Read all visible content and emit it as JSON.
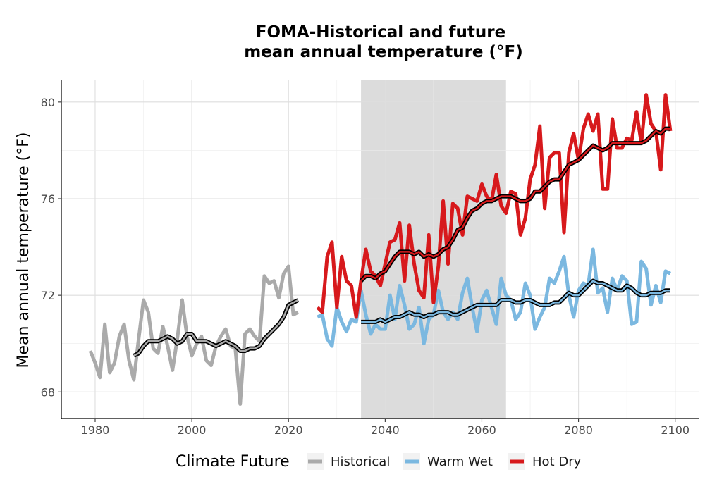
{
  "chart_data": {
    "type": "line",
    "title_line1": "FOMA-Historical and future",
    "title_line2": "mean annual temperature (°F)",
    "xlabel": "",
    "ylabel": "Mean annual temperature (°F)",
    "xlim": [
      1973,
      2105
    ],
    "ylim": [
      66.9,
      80.9
    ],
    "x_ticks": [
      1980,
      2000,
      2020,
      2040,
      2060,
      2080,
      2100
    ],
    "y_ticks": [
      68,
      72,
      76,
      80
    ],
    "grid": true,
    "shaded_period": [
      2035,
      2065
    ],
    "legend": {
      "title": "Climate Future",
      "placement": "bottom",
      "entries": [
        {
          "label": "Historical",
          "color": "#aaaaaa"
        },
        {
          "label": "Warm Wet",
          "color": "#7bb8e0"
        },
        {
          "label": "Hot Dry",
          "color": "#d7191c"
        }
      ]
    },
    "series": [
      {
        "name": "Historical",
        "color": "#aaaaaa",
        "x": [
          1979,
          1980,
          1981,
          1982,
          1983,
          1984,
          1985,
          1986,
          1987,
          1988,
          1989,
          1990,
          1991,
          1992,
          1993,
          1994,
          1995,
          1996,
          1997,
          1998,
          1999,
          2000,
          2001,
          2002,
          2003,
          2004,
          2005,
          2006,
          2007,
          2008,
          2009,
          2010,
          2011,
          2012,
          2013,
          2014,
          2015,
          2016,
          2017,
          2018,
          2019,
          2020,
          2021,
          2022
        ],
        "values": [
          69.7,
          69.2,
          68.6,
          70.8,
          68.8,
          69.2,
          70.3,
          70.8,
          69.3,
          68.5,
          70.2,
          71.8,
          71.3,
          69.8,
          69.6,
          70.7,
          69.9,
          68.9,
          70.2,
          71.8,
          70.3,
          69.5,
          70.0,
          70.3,
          69.3,
          69.1,
          69.9,
          70.3,
          70.6,
          69.9,
          69.8,
          67.5,
          70.4,
          70.6,
          70.3,
          70.1,
          72.8,
          72.5,
          72.6,
          71.9,
          72.9,
          73.2,
          71.2,
          71.3
        ]
      },
      {
        "name": "Historical (smoothed)",
        "color": "#aaaaaa",
        "smoothed": true,
        "x": [
          1988,
          1989,
          1990,
          1991,
          1992,
          1993,
          1994,
          1995,
          1996,
          1997,
          1998,
          1999,
          2000,
          2001,
          2002,
          2003,
          2004,
          2005,
          2006,
          2007,
          2008,
          2009,
          2010,
          2011,
          2012,
          2013,
          2014,
          2015,
          2016,
          2017,
          2018,
          2019,
          2020,
          2021,
          2022
        ],
        "values": [
          69.5,
          69.6,
          69.9,
          70.1,
          70.1,
          70.1,
          70.2,
          70.3,
          70.2,
          70.0,
          70.1,
          70.4,
          70.4,
          70.1,
          70.1,
          70.1,
          70.0,
          69.9,
          70.0,
          70.1,
          70.0,
          69.9,
          69.7,
          69.7,
          69.8,
          69.8,
          69.9,
          70.2,
          70.4,
          70.6,
          70.8,
          71.1,
          71.6,
          71.7,
          71.8
        ]
      },
      {
        "name": "Warm Wet",
        "color": "#7bb8e0",
        "x": [
          2026,
          2027,
          2028,
          2029,
          2030,
          2031,
          2032,
          2033,
          2034,
          2035,
          2036,
          2037,
          2038,
          2039,
          2040,
          2041,
          2042,
          2043,
          2044,
          2045,
          2046,
          2047,
          2048,
          2049,
          2050,
          2051,
          2052,
          2053,
          2054,
          2055,
          2056,
          2057,
          2058,
          2059,
          2060,
          2061,
          2062,
          2063,
          2064,
          2065,
          2066,
          2067,
          2068,
          2069,
          2070,
          2071,
          2072,
          2073,
          2074,
          2075,
          2076,
          2077,
          2078,
          2079,
          2080,
          2081,
          2082,
          2083,
          2084,
          2085,
          2086,
          2087,
          2088,
          2089,
          2090,
          2091,
          2092,
          2093,
          2094,
          2095,
          2096,
          2097,
          2098,
          2099
        ],
        "values": [
          71.1,
          71.2,
          70.2,
          69.9,
          71.5,
          70.9,
          70.5,
          71.0,
          70.9,
          72.2,
          71.2,
          70.4,
          70.8,
          70.6,
          70.6,
          72.0,
          71.0,
          72.4,
          71.6,
          70.6,
          70.8,
          71.5,
          70.0,
          71.0,
          71.2,
          72.2,
          71.3,
          71.0,
          71.3,
          71.0,
          72.1,
          72.7,
          71.5,
          70.5,
          71.8,
          72.2,
          71.5,
          70.8,
          72.7,
          72.0,
          71.8,
          71.0,
          71.3,
          72.5,
          72.0,
          70.6,
          71.1,
          71.5,
          72.7,
          72.5,
          73.0,
          73.6,
          72.0,
          71.1,
          72.2,
          72.5,
          72.4,
          73.9,
          72.1,
          72.3,
          71.3,
          72.7,
          72.2,
          72.8,
          72.6,
          70.8,
          70.9,
          73.4,
          73.1,
          71.6,
          72.4,
          71.7,
          73.0,
          72.9
        ]
      },
      {
        "name": "Warm Wet (smoothed)",
        "color": "#7bb8e0",
        "smoothed": true,
        "x": [
          2035,
          2036,
          2037,
          2038,
          2039,
          2040,
          2041,
          2042,
          2043,
          2044,
          2045,
          2046,
          2047,
          2048,
          2049,
          2050,
          2051,
          2052,
          2053,
          2054,
          2055,
          2056,
          2057,
          2058,
          2059,
          2060,
          2061,
          2062,
          2063,
          2064,
          2065,
          2066,
          2067,
          2068,
          2069,
          2070,
          2071,
          2072,
          2073,
          2074,
          2075,
          2076,
          2077,
          2078,
          2079,
          2080,
          2081,
          2082,
          2083,
          2084,
          2085,
          2086,
          2087,
          2088,
          2089,
          2090,
          2091,
          2092,
          2093,
          2094,
          2095,
          2096,
          2097,
          2098,
          2099
        ],
        "values": [
          70.9,
          70.9,
          70.9,
          70.9,
          71.0,
          70.9,
          71.0,
          71.1,
          71.1,
          71.2,
          71.3,
          71.2,
          71.2,
          71.1,
          71.2,
          71.2,
          71.3,
          71.3,
          71.3,
          71.2,
          71.2,
          71.3,
          71.4,
          71.5,
          71.6,
          71.6,
          71.6,
          71.6,
          71.6,
          71.8,
          71.8,
          71.8,
          71.7,
          71.7,
          71.8,
          71.8,
          71.7,
          71.6,
          71.6,
          71.6,
          71.7,
          71.7,
          71.9,
          72.1,
          72.0,
          72.0,
          72.2,
          72.4,
          72.6,
          72.5,
          72.5,
          72.4,
          72.3,
          72.2,
          72.2,
          72.4,
          72.3,
          72.1,
          72.0,
          72.0,
          72.1,
          72.1,
          72.1,
          72.2,
          72.2
        ]
      },
      {
        "name": "Hot Dry",
        "color": "#d7191c",
        "x": [
          2026,
          2027,
          2028,
          2029,
          2030,
          2031,
          2032,
          2033,
          2034,
          2035,
          2036,
          2037,
          2038,
          2039,
          2040,
          2041,
          2042,
          2043,
          2044,
          2045,
          2046,
          2047,
          2048,
          2049,
          2050,
          2051,
          2052,
          2053,
          2054,
          2055,
          2056,
          2057,
          2058,
          2059,
          2060,
          2061,
          2062,
          2063,
          2064,
          2065,
          2066,
          2067,
          2068,
          2069,
          2070,
          2071,
          2072,
          2073,
          2074,
          2075,
          2076,
          2077,
          2078,
          2079,
          2080,
          2081,
          2082,
          2083,
          2084,
          2085,
          2086,
          2087,
          2088,
          2089,
          2090,
          2091,
          2092,
          2093,
          2094,
          2095,
          2096,
          2097,
          2098,
          2099
        ],
        "values": [
          71.5,
          71.3,
          73.6,
          74.2,
          71.5,
          73.6,
          72.6,
          72.4,
          71.1,
          72.6,
          73.9,
          73.0,
          72.8,
          72.4,
          73.3,
          74.2,
          74.3,
          75.0,
          72.6,
          74.9,
          73.3,
          72.2,
          71.9,
          74.5,
          71.7,
          73.2,
          75.9,
          73.3,
          75.8,
          75.6,
          74.5,
          76.1,
          76.0,
          75.9,
          76.6,
          76.1,
          75.9,
          77.0,
          75.7,
          75.4,
          76.3,
          76.2,
          74.5,
          75.2,
          76.8,
          77.4,
          79.0,
          75.6,
          77.7,
          77.9,
          77.9,
          74.6,
          77.9,
          78.7,
          77.6,
          78.9,
          79.5,
          78.8,
          79.5,
          76.4,
          76.4,
          79.3,
          78.1,
          78.1,
          78.5,
          78.4,
          79.6,
          78.3,
          80.3,
          79.1,
          78.8,
          77.2,
          80.3,
          78.8
        ]
      },
      {
        "name": "Hot Dry (smoothed)",
        "color": "#d7191c",
        "smoothed": true,
        "x": [
          2035,
          2036,
          2037,
          2038,
          2039,
          2040,
          2041,
          2042,
          2043,
          2044,
          2045,
          2046,
          2047,
          2048,
          2049,
          2050,
          2051,
          2052,
          2053,
          2054,
          2055,
          2056,
          2057,
          2058,
          2059,
          2060,
          2061,
          2062,
          2063,
          2064,
          2065,
          2066,
          2067,
          2068,
          2069,
          2070,
          2071,
          2072,
          2073,
          2074,
          2075,
          2076,
          2077,
          2078,
          2079,
          2080,
          2081,
          2082,
          2083,
          2084,
          2085,
          2086,
          2087,
          2088,
          2089,
          2090,
          2091,
          2092,
          2093,
          2094,
          2095,
          2096,
          2097,
          2098,
          2099
        ],
        "values": [
          72.6,
          72.8,
          72.8,
          72.7,
          72.9,
          73.0,
          73.3,
          73.6,
          73.8,
          73.8,
          73.8,
          73.7,
          73.8,
          73.6,
          73.7,
          73.6,
          73.7,
          73.9,
          74.0,
          74.3,
          74.7,
          74.8,
          75.2,
          75.5,
          75.6,
          75.8,
          75.9,
          75.9,
          76.0,
          76.1,
          76.1,
          76.1,
          76.0,
          75.9,
          75.9,
          76.0,
          76.3,
          76.3,
          76.5,
          76.7,
          76.8,
          76.8,
          77.1,
          77.4,
          77.5,
          77.6,
          77.8,
          78.0,
          78.2,
          78.1,
          78.0,
          78.1,
          78.3,
          78.3,
          78.3,
          78.3,
          78.3,
          78.3,
          78.3,
          78.4,
          78.6,
          78.8,
          78.7,
          78.9,
          78.9
        ]
      }
    ]
  }
}
